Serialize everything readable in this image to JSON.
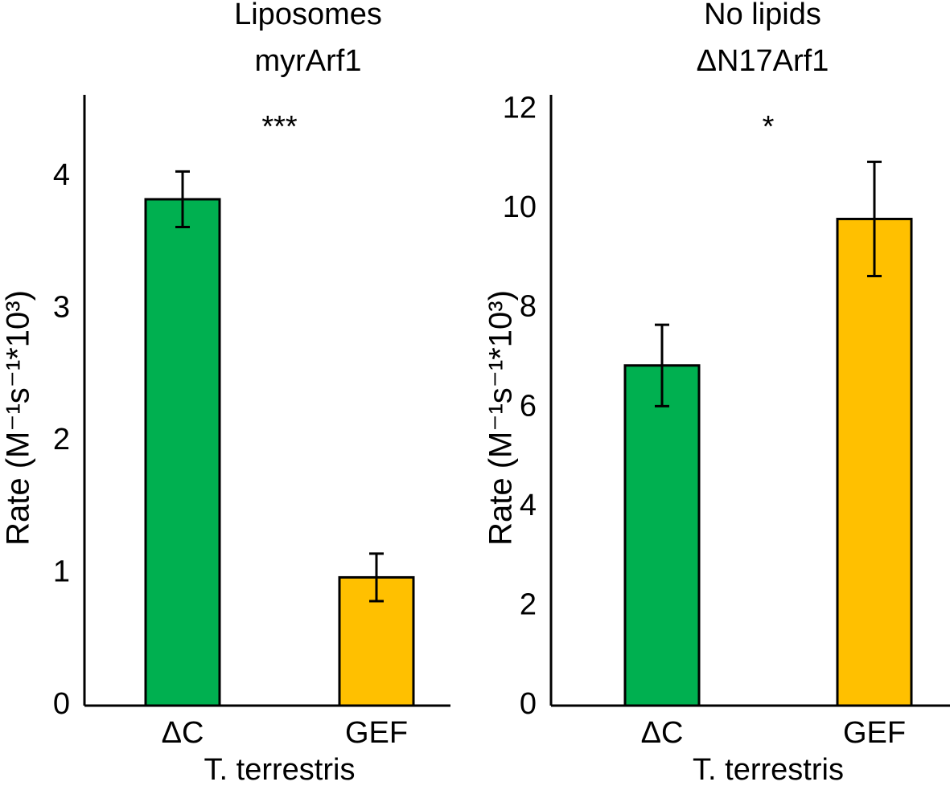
{
  "chart_data": [
    {
      "type": "bar",
      "title": [
        "Liposomes",
        "myrArf1"
      ],
      "ylabel": "Rate (M⁻¹s⁻¹*10³)",
      "xlabel": "T. terrestris",
      "categories": [
        "ΔC",
        "GEF"
      ],
      "values": [
        3.83,
        0.97
      ],
      "errors": [
        0.21,
        0.18
      ],
      "colors": [
        "#00b050",
        "#ffc000"
      ],
      "ylim": [
        0,
        4.62
      ],
      "yticks": [
        0,
        1,
        2,
        3,
        4
      ],
      "annotation": "***"
    },
    {
      "type": "bar",
      "title": [
        "No lipids",
        "ΔN17Arf1"
      ],
      "ylabel": "Rate (M⁻¹s⁻¹*10³)",
      "xlabel": "T. terrestris",
      "categories": [
        "ΔC",
        "GEF"
      ],
      "values": [
        6.85,
        9.8
      ],
      "errors": [
        0.82,
        1.15
      ],
      "colors": [
        "#00b050",
        "#ffc000"
      ],
      "ylim": [
        0,
        12.3
      ],
      "yticks": [
        0,
        2,
        4,
        6,
        8,
        10,
        12
      ],
      "annotation": "*"
    }
  ]
}
